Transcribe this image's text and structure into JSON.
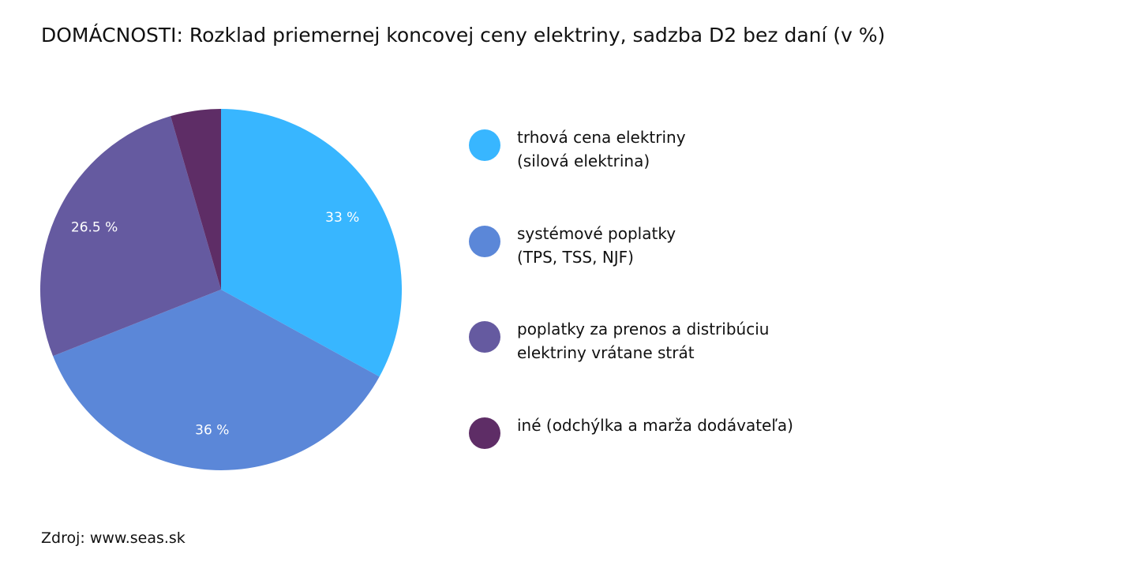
{
  "chart_data": {
    "type": "pie",
    "title": "DOMÁCNOSTI: Rozklad priemernej koncovej ceny elektriny, sadzba D2 bez daní (v %)",
    "categories": [
      "trhová cena elektriny\n(silová elektrina)",
      "systémové poplatky\n(TPS, TSS, NJF)",
      "poplatky za prenos a distribúciu\nelektriny vrátane strát",
      "iné (odchýlka a marža dodávateľa)"
    ],
    "values": [
      33,
      36,
      26.5,
      4.5
    ],
    "value_labels": [
      "33 %",
      "36 %",
      "26.5 %",
      null
    ],
    "colors": [
      "#38b6ff",
      "#5b87d8",
      "#655aa0",
      "#5e2d66"
    ],
    "source": "Zdroj: www.seas.sk"
  }
}
